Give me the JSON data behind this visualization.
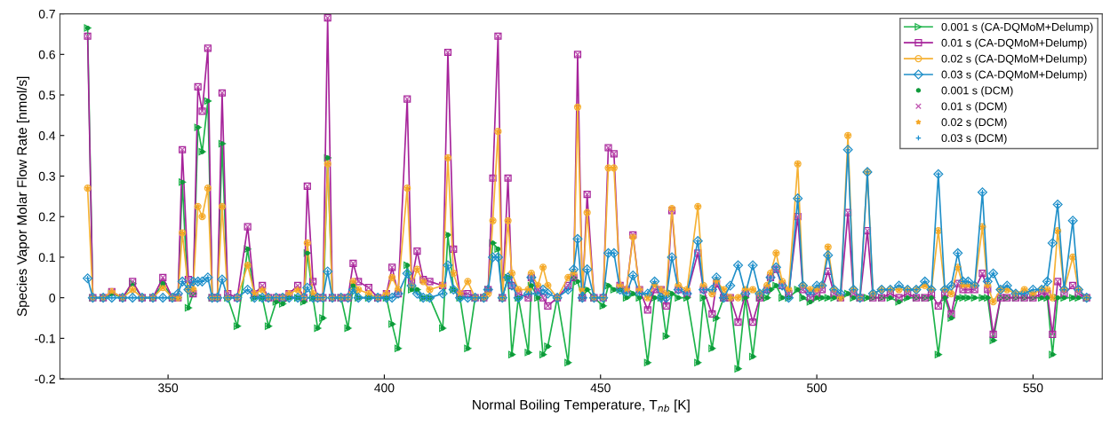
{
  "chart_data": {
    "type": "line",
    "xlabel": "Normal Boiling Temperature, T$_{nb}$ [K]",
    "ylabel": "Species Vapor Molar Flow Rate [nmol/s]",
    "xlim": [
      325,
      566
    ],
    "ylim": [
      -0.2,
      0.7
    ],
    "xticks": [
      350,
      400,
      450,
      500,
      550
    ],
    "yticks": [
      -0.2,
      -0.1,
      0,
      0.1,
      0.2,
      0.3,
      0.4,
      0.5,
      0.6,
      0.7
    ],
    "grid": false,
    "legend": "top right",
    "x": [
      331.4,
      332.6,
      335,
      337,
      339.5,
      341.8,
      344,
      346.5,
      348.8,
      351,
      352.3,
      353.3,
      354.7,
      355.8,
      356.9,
      357.9,
      359.2,
      360.2,
      361.4,
      362.5,
      363.8,
      366,
      368.4,
      370,
      371.8,
      373.2,
      375,
      376.5,
      378,
      380,
      381.4,
      382.2,
      383.5,
      384.6,
      385.8,
      386.9,
      388,
      390,
      391.6,
      392.8,
      394,
      396.4,
      398.5,
      400.5,
      401.8,
      403.2,
      405.3,
      406.3,
      407.6,
      409,
      410.5,
      413.5,
      414.7,
      416,
      417.5,
      419.3,
      421,
      423,
      424,
      425.1,
      426.3,
      427.3,
      428.6,
      429.5,
      431,
      433.3,
      434,
      435.5,
      436.7,
      437.8,
      440,
      442.5,
      443.8,
      444.7,
      445.8,
      446.9,
      448.5,
      450.6,
      451.8,
      453.1,
      454.5,
      456,
      457.5,
      459,
      460.9,
      462.5,
      464,
      465.2,
      466.5,
      468,
      470,
      472.5,
      473.8,
      475.8,
      476.8,
      478.5,
      480,
      481.8,
      483.5,
      485.2,
      486.8,
      488.5,
      489.3,
      490.6,
      492,
      493.5,
      495.6,
      496.8,
      498.5,
      500,
      501.2,
      502.6,
      504,
      505.5,
      507.2,
      508.5,
      510,
      511.7,
      513,
      515,
      517,
      519,
      521,
      523,
      525,
      526.5,
      528.1,
      529.6,
      531.1,
      532.6,
      533.8,
      535,
      536.5,
      538.3,
      539.5,
      540.8,
      542.5,
      544,
      546,
      548,
      550,
      552,
      553.3,
      554.5,
      555.7,
      557.2,
      559.2,
      560.5,
      562.4
    ],
    "series": [
      {
        "name": "0.001 s (CA-DQMoM+Delump)",
        "marker": "triangle",
        "color": "#1db34a",
        "values": [
          0.665,
          0,
          0,
          0.01,
          0,
          0.035,
          0,
          0,
          0.035,
          0,
          0,
          0.285,
          -0.025,
          0.01,
          0.42,
          0.36,
          0.485,
          0,
          0,
          0.38,
          0,
          -0.07,
          0.12,
          0,
          0,
          -0.07,
          -0.01,
          -0.015,
          0,
          0,
          -0.01,
          0.11,
          0,
          -0.075,
          -0.05,
          0.345,
          0,
          0,
          -0.075,
          0.03,
          0,
          0,
          0,
          0,
          -0.065,
          -0.125,
          0.08,
          0.02,
          0.02,
          0,
          0,
          -0.075,
          0.155,
          0.02,
          0,
          -0.125,
          0,
          0,
          0.02,
          0.135,
          0.12,
          0,
          0.05,
          -0.14,
          0,
          -0.135,
          0.03,
          0,
          -0.14,
          -0.12,
          0,
          -0.16,
          0.05,
          0.04,
          0,
          0.02,
          0,
          -0.02,
          0.03,
          0.02,
          0.02,
          0,
          0.01,
          0,
          -0.16,
          0,
          0,
          -0.095,
          0.01,
          0,
          0,
          -0.16,
          0,
          -0.125,
          -0.05,
          0,
          0,
          -0.175,
          0,
          -0.145,
          0,
          0,
          0.02,
          0.03,
          0,
          0,
          0.02,
          0,
          -0.01,
          0,
          0,
          0,
          0,
          0,
          0.01,
          0,
          0,
          0,
          0,
          0,
          0,
          -0.01,
          0,
          0,
          0,
          0,
          -0.14,
          0,
          -0.05,
          0,
          0,
          0,
          0,
          0,
          0,
          -0.105,
          0,
          0,
          0,
          0,
          0,
          0,
          0,
          -0.14,
          0,
          0,
          0,
          0,
          0
        ]
      },
      {
        "name": "0.01 s (CA-DQMoM+Delump)",
        "marker": "square",
        "color": "#a6239a",
        "values": [
          0.645,
          0,
          0,
          0.015,
          0,
          0.04,
          0,
          0,
          0.05,
          0,
          0,
          0.365,
          0.045,
          0.01,
          0.52,
          0.46,
          0.615,
          0,
          0,
          0.505,
          0.01,
          0,
          0.175,
          0.01,
          0.03,
          0,
          0,
          0,
          0.01,
          0.03,
          0,
          0.275,
          0.04,
          0,
          0,
          0.69,
          0,
          0,
          0,
          0.085,
          0.04,
          0.025,
          0,
          0.01,
          0.075,
          0.01,
          0.49,
          0.04,
          0.115,
          0.045,
          0.04,
          0.03,
          0.605,
          0.12,
          0.01,
          0.01,
          0,
          0,
          0.02,
          0.295,
          0.645,
          0,
          0.295,
          0.03,
          0.01,
          0,
          0.05,
          0.02,
          0,
          -0.02,
          0,
          0.03,
          0.05,
          0.6,
          0,
          0.255,
          0,
          0,
          0.37,
          0.355,
          0.03,
          0.02,
          0.155,
          0.02,
          -0.03,
          0.02,
          0.02,
          -0.02,
          0.215,
          0.02,
          0.01,
          0.11,
          0.02,
          -0.04,
          0.035,
          0,
          0,
          -0.06,
          0.01,
          -0.06,
          0,
          0.02,
          0.05,
          0.07,
          0.03,
          0.01,
          0.2,
          0.02,
          0,
          0.01,
          0.02,
          0.065,
          0.01,
          0,
          0.21,
          0.01,
          0,
          0.165,
          0,
          0,
          0.01,
          0,
          0.01,
          0,
          0,
          0.01,
          -0.02,
          0.01,
          -0.04,
          0.035,
          0.02,
          0.02,
          0.02,
          0.06,
          0.02,
          -0.09,
          0,
          0,
          0,
          0,
          0,
          0.01,
          0.01,
          -0.09,
          0.04,
          0.01,
          0.03,
          0.01,
          0
        ]
      },
      {
        "name": "0.02 s (CA-DQMoM+Delump)",
        "marker": "circle",
        "color": "#f5b134",
        "values": [
          0.27,
          0,
          0,
          0.015,
          0,
          0.02,
          0,
          0,
          0.025,
          0,
          0,
          0.16,
          0.02,
          0.02,
          0.225,
          0.2,
          0.27,
          0,
          0,
          0.225,
          0,
          0,
          0.08,
          0.01,
          0.02,
          0,
          0,
          0,
          0.01,
          0.02,
          0,
          0.135,
          0.01,
          0,
          0,
          0.33,
          0,
          0,
          0,
          0.04,
          0.02,
          0.01,
          0,
          0.01,
          0.05,
          0.02,
          0.27,
          0.03,
          0.07,
          0.04,
          0.02,
          0.03,
          0.345,
          0.06,
          0.01,
          0.04,
          0,
          0,
          0.01,
          0.19,
          0.41,
          0,
          0.19,
          0.06,
          0.02,
          0.02,
          0.06,
          0.03,
          0.075,
          0.03,
          0,
          0.05,
          0.06,
          0.47,
          0.02,
          0.21,
          0,
          0,
          0.32,
          0.32,
          0.03,
          0.02,
          0.15,
          0.02,
          0,
          0.03,
          0.02,
          0.01,
          0.22,
          0.03,
          0.02,
          0.225,
          0.03,
          0.01,
          0.04,
          0.02,
          0,
          0,
          0.02,
          0.02,
          0.01,
          0.03,
          0.06,
          0.11,
          0.04,
          0.02,
          0.33,
          0.03,
          0.02,
          0.02,
          0.03,
          0.125,
          0.02,
          0,
          0.4,
          0.02,
          0,
          0.31,
          0.01,
          0.02,
          0.02,
          0.02,
          0.02,
          0.02,
          0.03,
          0.02,
          0.165,
          0.02,
          0.01,
          0.075,
          0.03,
          0.03,
          0.03,
          0.175,
          0.03,
          -0.01,
          0.02,
          0.02,
          0.01,
          0.02,
          0.01,
          0.02,
          0.02,
          0,
          0.165,
          0.02,
          0.1,
          0.02,
          0
        ]
      },
      {
        "name": "0.03 s (CA-DQMoM+Delump)",
        "marker": "diamond",
        "color": "#1f8fc8",
        "values": [
          0.048,
          0,
          0,
          0,
          0,
          0,
          0,
          0,
          0,
          0,
          0.01,
          0.04,
          0.02,
          0.04,
          0.04,
          0.04,
          0.05,
          0,
          0,
          0.045,
          0,
          0,
          0.02,
          0,
          0,
          0,
          0,
          0,
          0,
          0,
          0,
          0.025,
          0,
          0,
          0,
          0.065,
          0,
          0,
          0,
          0.02,
          0,
          0,
          0,
          0,
          0,
          0.01,
          0.06,
          0.03,
          0.01,
          0,
          0,
          0.01,
          0.08,
          0.02,
          0,
          0,
          0,
          0,
          0.02,
          0.1,
          0.1,
          0,
          0.05,
          0.03,
          0,
          0.01,
          0.05,
          0.01,
          0.02,
          0.01,
          0,
          0.02,
          0.07,
          0.145,
          0,
          0.07,
          0,
          0,
          0.11,
          0.11,
          0.02,
          0.01,
          0.055,
          0.01,
          0.01,
          0.04,
          0,
          0,
          0.1,
          0.02,
          0.01,
          0.14,
          0.02,
          0.02,
          0.05,
          0,
          0.03,
          0.08,
          0.01,
          0.08,
          0.01,
          0.02,
          0.05,
          0.075,
          0.03,
          0,
          0.245,
          0.03,
          0.01,
          0.03,
          0.03,
          0.105,
          0.02,
          0.01,
          0.365,
          0.02,
          0,
          0.31,
          0.01,
          0.02,
          0.02,
          0.03,
          0.02,
          0.02,
          0.04,
          0.02,
          0.305,
          0.02,
          0.03,
          0.11,
          0.04,
          0.04,
          0.03,
          0.26,
          0.04,
          0.06,
          0.02,
          0.03,
          0.01,
          0.01,
          0.02,
          0.02,
          0.04,
          0.135,
          0.23,
          0.02,
          0.19,
          0.02,
          0
        ]
      },
      {
        "name": "0.001 s (DCM)",
        "type": "scatter",
        "marker": "point",
        "color": "#0f9a3b",
        "values": [
          0.665,
          0,
          0,
          0.01,
          0,
          0.035,
          0,
          0,
          0.035,
          0,
          0,
          0.285,
          -0.025,
          0.01,
          0.42,
          0.36,
          0.485,
          0,
          0,
          0.38,
          0,
          -0.07,
          0.12,
          0,
          0,
          -0.07,
          -0.01,
          -0.015,
          0,
          0,
          -0.01,
          0.11,
          0,
          -0.075,
          -0.05,
          0.345,
          0,
          0,
          -0.075,
          0.03,
          0,
          0,
          0,
          0,
          -0.065,
          -0.125,
          0.08,
          0.02,
          0.02,
          0,
          0,
          -0.075,
          0.155,
          0.02,
          0,
          -0.125,
          0,
          0,
          0.02,
          0.135,
          0.12,
          0,
          0.05,
          -0.14,
          0,
          -0.135,
          0.03,
          0,
          -0.14,
          -0.12,
          0,
          -0.16,
          0.05,
          0.04,
          0,
          0.02,
          0,
          -0.02,
          0.03,
          0.02,
          0.02,
          0,
          0.01,
          0,
          -0.16,
          0,
          0,
          -0.095,
          0.01,
          0,
          0,
          -0.16,
          0,
          -0.125,
          -0.05,
          0,
          0,
          -0.175,
          0,
          -0.145,
          0,
          0,
          0.02,
          0.03,
          0,
          0,
          0.02,
          0,
          -0.01,
          0,
          0,
          0,
          0,
          0,
          0.01,
          0,
          0,
          0,
          0,
          0,
          0,
          -0.01,
          0,
          0,
          0,
          0,
          -0.14,
          0,
          -0.05,
          0,
          0,
          0,
          0,
          0,
          0,
          -0.105,
          0,
          0,
          0,
          0,
          0,
          0,
          0,
          -0.14,
          0,
          0,
          0,
          0,
          0
        ]
      },
      {
        "name": "0.01 s (DCM)",
        "type": "scatter",
        "marker": "cross",
        "color": "#c157b2",
        "values": [
          0.645,
          0,
          0,
          0.015,
          0,
          0.04,
          0,
          0,
          0.05,
          0,
          0,
          0.365,
          0.045,
          0.01,
          0.52,
          0.46,
          0.615,
          0,
          0,
          0.505,
          0.01,
          0,
          0.175,
          0.01,
          0.03,
          0,
          0,
          0,
          0.01,
          0.03,
          0,
          0.275,
          0.04,
          0,
          0,
          0.69,
          0,
          0,
          0,
          0.085,
          0.04,
          0.025,
          0,
          0.01,
          0.075,
          0.01,
          0.49,
          0.04,
          0.115,
          0.045,
          0.04,
          0.03,
          0.605,
          0.12,
          0.01,
          0.01,
          0,
          0,
          0.02,
          0.295,
          0.645,
          0,
          0.295,
          0.03,
          0.01,
          0,
          0.05,
          0.02,
          0,
          -0.02,
          0,
          0.03,
          0.05,
          0.6,
          0,
          0.255,
          0,
          0,
          0.37,
          0.355,
          0.03,
          0.02,
          0.155,
          0.02,
          -0.03,
          0.02,
          0.02,
          -0.02,
          0.215,
          0.02,
          0.01,
          0.11,
          0.02,
          -0.04,
          0.035,
          0,
          0,
          -0.06,
          0.01,
          -0.06,
          0,
          0.02,
          0.05,
          0.07,
          0.03,
          0.01,
          0.2,
          0.02,
          0,
          0.01,
          0.02,
          0.065,
          0.01,
          0,
          0.21,
          0.01,
          0,
          0.165,
          0,
          0,
          0.01,
          0,
          0.01,
          0,
          0,
          0.01,
          -0.02,
          0.01,
          -0.04,
          0.035,
          0.02,
          0.02,
          0.02,
          0.06,
          0.02,
          -0.09,
          0,
          0,
          0,
          0,
          0,
          0.01,
          0.01,
          -0.09,
          0.04,
          0.01,
          0.03,
          0.01,
          0
        ]
      },
      {
        "name": "0.02 s (DCM)",
        "type": "scatter",
        "marker": "star",
        "color": "#f5a623",
        "values": [
          0.27,
          0,
          0,
          0.015,
          0,
          0.02,
          0,
          0,
          0.025,
          0,
          0,
          0.16,
          0.02,
          0.02,
          0.225,
          0.2,
          0.27,
          0,
          0,
          0.225,
          0,
          0,
          0.08,
          0.01,
          0.02,
          0,
          0,
          0,
          0.01,
          0.02,
          0,
          0.135,
          0.01,
          0,
          0,
          0.33,
          0,
          0,
          0,
          0.04,
          0.02,
          0.01,
          0,
          0.01,
          0.05,
          0.02,
          0.27,
          0.03,
          0.07,
          0.04,
          0.02,
          0.03,
          0.345,
          0.06,
          0.01,
          0.04,
          0,
          0,
          0.01,
          0.19,
          0.41,
          0,
          0.19,
          0.06,
          0.02,
          0.02,
          0.06,
          0.03,
          0.075,
          0.03,
          0,
          0.05,
          0.06,
          0.47,
          0.02,
          0.21,
          0,
          0,
          0.32,
          0.32,
          0.03,
          0.02,
          0.15,
          0.02,
          0,
          0.03,
          0.02,
          0.01,
          0.22,
          0.03,
          0.02,
          0.225,
          0.03,
          0.01,
          0.04,
          0.02,
          0,
          0,
          0.02,
          0.02,
          0.01,
          0.03,
          0.06,
          0.11,
          0.04,
          0.02,
          0.33,
          0.03,
          0.02,
          0.02,
          0.03,
          0.125,
          0.02,
          0,
          0.4,
          0.02,
          0,
          0.31,
          0.01,
          0.02,
          0.02,
          0.02,
          0.02,
          0.02,
          0.03,
          0.02,
          0.165,
          0.02,
          0.01,
          0.075,
          0.03,
          0.03,
          0.03,
          0.175,
          0.03,
          -0.01,
          0.02,
          0.02,
          0.01,
          0.02,
          0.01,
          0.02,
          0.02,
          0,
          0.165,
          0.02,
          0.1,
          0.02,
          0
        ]
      },
      {
        "name": "0.03 s (DCM)",
        "type": "scatter",
        "marker": "plus",
        "color": "#1a8fcf",
        "values": [
          0.048,
          0,
          0,
          0,
          0,
          0,
          0,
          0,
          0,
          0,
          0.01,
          0.04,
          0.02,
          0.04,
          0.04,
          0.04,
          0.05,
          0,
          0,
          0.045,
          0,
          0,
          0.02,
          0,
          0,
          0,
          0,
          0,
          0,
          0,
          0,
          0.025,
          0,
          0,
          0,
          0.065,
          0,
          0,
          0,
          0.02,
          0,
          0,
          0,
          0,
          0,
          0.01,
          0.06,
          0.03,
          0.01,
          0,
          0,
          0.01,
          0.08,
          0.02,
          0,
          0,
          0,
          0,
          0.02,
          0.1,
          0.1,
          0,
          0.05,
          0.03,
          0,
          0.01,
          0.05,
          0.01,
          0.02,
          0.01,
          0,
          0.02,
          0.07,
          0.145,
          0,
          0.07,
          0,
          0,
          0.11,
          0.11,
          0.02,
          0.01,
          0.055,
          0.01,
          0.01,
          0.04,
          0,
          0,
          0.1,
          0.02,
          0.01,
          0.14,
          0.02,
          0.02,
          0.05,
          0,
          0.03,
          0.08,
          0.01,
          0.08,
          0.01,
          0.02,
          0.05,
          0.075,
          0.03,
          0,
          0.245,
          0.03,
          0.01,
          0.03,
          0.03,
          0.105,
          0.02,
          0.01,
          0.365,
          0.02,
          0,
          0.31,
          0.01,
          0.02,
          0.02,
          0.03,
          0.02,
          0.02,
          0.04,
          0.02,
          0.305,
          0.02,
          0.03,
          0.11,
          0.04,
          0.04,
          0.03,
          0.26,
          0.04,
          0.06,
          0.02,
          0.03,
          0.01,
          0.01,
          0.02,
          0.02,
          0.04,
          0.135,
          0.23,
          0.02,
          0.19,
          0.02,
          0
        ]
      }
    ]
  }
}
